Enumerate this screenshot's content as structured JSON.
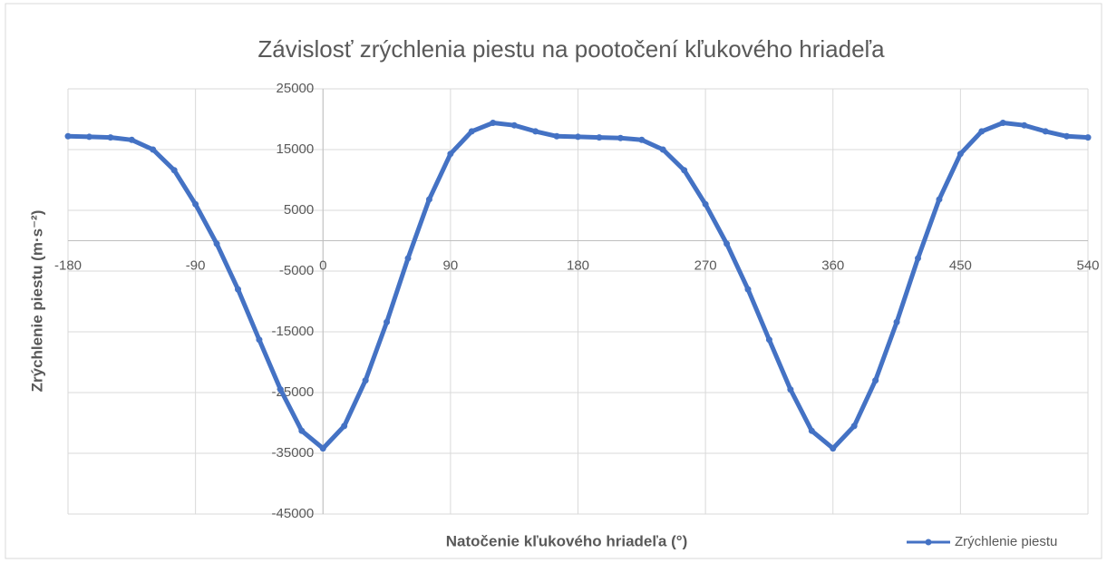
{
  "chart_data": {
    "type": "line",
    "title": "Závislosť zrýchlenia piestu na pootočení kľukového hriadeľa",
    "x_label": "Natočenie kľukového hriadeľa (°)",
    "y_label": "Zrýchlenie piestu (m·s⁻²)",
    "x": [
      -180,
      -165,
      -150,
      -135,
      -120,
      -105,
      -90,
      -75,
      -60,
      -45,
      -30,
      -15,
      0,
      15,
      30,
      45,
      60,
      75,
      90,
      105,
      120,
      135,
      150,
      165,
      180,
      195,
      210,
      225,
      240,
      255,
      270,
      285,
      300,
      315,
      330,
      345,
      360,
      375,
      390,
      405,
      420,
      435,
      450,
      465,
      480,
      495,
      510,
      525,
      540
    ],
    "series": [
      {
        "name": "Zrýchlenie piestu",
        "color": "#4472c4",
        "values": [
          17200,
          17100,
          17000,
          16600,
          15000,
          11600,
          6000,
          -500,
          -8000,
          -16300,
          -24500,
          -31300,
          -34200,
          -30500,
          -23000,
          -13400,
          -2900,
          6800,
          14300,
          18000,
          19400,
          19000,
          18000,
          17200,
          17100,
          17000,
          16900,
          16600,
          15000,
          11600,
          6000,
          -500,
          -8000,
          -16300,
          -24500,
          -31300,
          -34200,
          -30500,
          -23000,
          -13400,
          -2900,
          6800,
          14300,
          18000,
          19400,
          19000,
          18000,
          17200,
          17000
        ]
      }
    ],
    "xlim": [
      -180,
      540
    ],
    "xticks": [
      -180,
      -90,
      0,
      90,
      180,
      270,
      360,
      450,
      540
    ],
    "ylim": [
      -45000,
      25000
    ],
    "yticks": [
      -45000,
      -35000,
      -25000,
      -15000,
      -5000,
      5000,
      15000,
      25000
    ],
    "grid": true,
    "legend": "bottom-right"
  }
}
